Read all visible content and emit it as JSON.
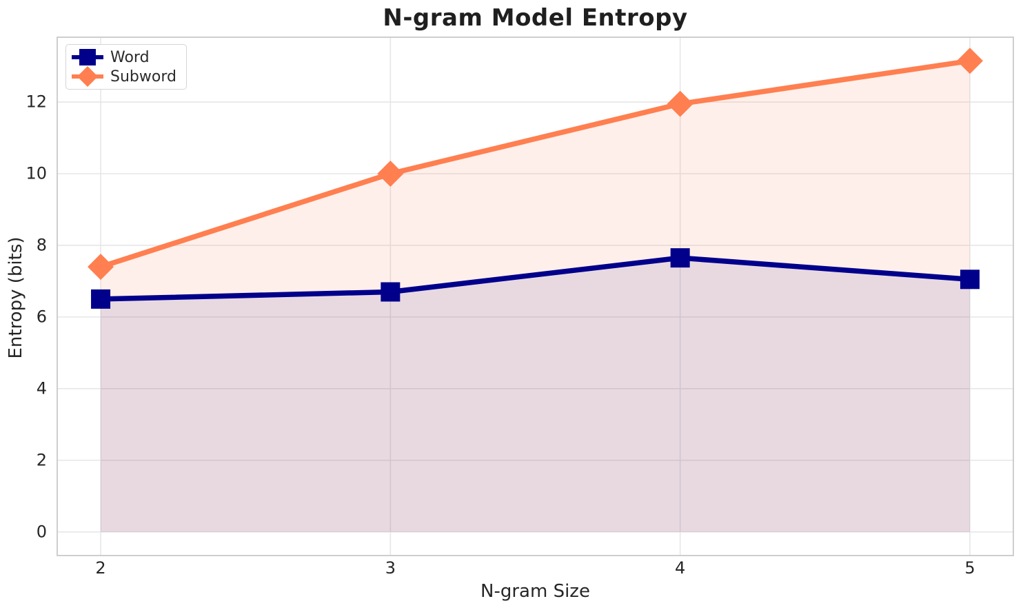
{
  "chart_data": {
    "type": "line",
    "title": "N-gram Model Entropy",
    "xlabel": "N-gram Size",
    "ylabel": "Entropy (bits)",
    "x": [
      2,
      3,
      4,
      5
    ],
    "series": [
      {
        "name": "Word",
        "color": "#00008B",
        "marker": "square",
        "values": [
          6.5,
          6.7,
          7.65,
          7.05
        ],
        "fill_opacity": 0.09
      },
      {
        "name": "Subword",
        "color": "#FF7F50",
        "marker": "diamond",
        "values": [
          7.4,
          10.0,
          11.95,
          13.15
        ],
        "fill_opacity": 0.12
      }
    ],
    "xticks": [
      2,
      3,
      4,
      5
    ],
    "yticks": [
      0,
      2,
      4,
      6,
      8,
      10,
      12
    ],
    "xlim": [
      1.85,
      5.15
    ],
    "ylim": [
      -0.66,
      13.81
    ],
    "grid": true,
    "fill_to_zero": true,
    "legend_position": "upper-left"
  },
  "colors": {
    "grid": "#e6e6e6",
    "spine": "#c9c9c9",
    "text": "#262626",
    "background": "#ffffff"
  }
}
